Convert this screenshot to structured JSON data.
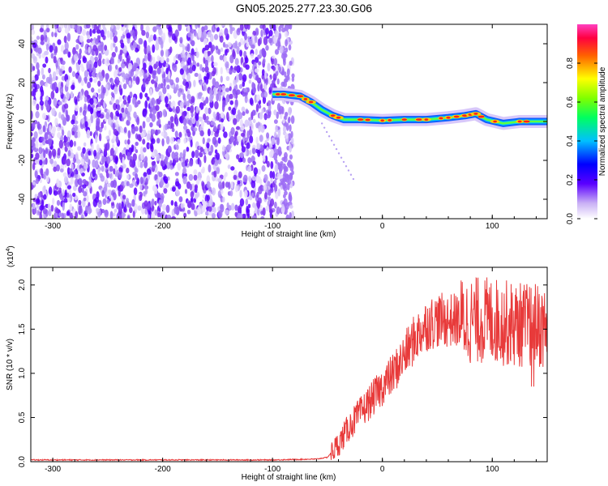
{
  "title": "GN05.2025.277.23.30.G06",
  "chart_data": [
    {
      "type": "heatmap",
      "xlabel": "Height of straight line (km)",
      "ylabel": "Frequency (Hz)",
      "xlim": [
        -320,
        150
      ],
      "ylim": [
        -50,
        50
      ],
      "xticks": [
        -300,
        -200,
        -100,
        0,
        100
      ],
      "yticks": [
        -40,
        -20,
        0,
        20,
        40
      ],
      "colorbar": {
        "label": "Normalized spectral amplitude",
        "range": [
          0.0,
          1.0
        ],
        "ticks": [
          "0.0",
          "0.2",
          "0.4",
          "0.6",
          "0.8"
        ]
      },
      "noise_region_x": [
        -320,
        -90
      ],
      "signal_track": {
        "x": [
          -100,
          -90,
          -75,
          -65,
          -55,
          -45,
          -35,
          -20,
          0,
          20,
          40,
          60,
          75,
          85,
          95,
          110,
          125,
          150
        ],
        "frequency": [
          14,
          14,
          13,
          10,
          6,
          3,
          1,
          1,
          0.5,
          1,
          1,
          2,
          3,
          4,
          1,
          -1,
          0,
          0
        ]
      }
    },
    {
      "type": "line",
      "xlabel": "Height of straight line (km)",
      "ylabel": "SNR (10 * v/v)",
      "y_multiplier": "(x10^4)",
      "xlim": [
        -320,
        150
      ],
      "ylim": [
        0,
        2.2
      ],
      "xticks": [
        -300,
        -200,
        -100,
        0,
        100
      ],
      "yticks": [
        0.0,
        0.5,
        1.0,
        1.5,
        2.0
      ],
      "color": "#e83a3a",
      "series": [
        {
          "x": [
            -320,
            -100,
            -60,
            -50,
            -40,
            -30,
            -20,
            -10,
            0,
            10,
            20,
            30,
            40,
            50,
            60,
            80,
            100,
            120,
            130,
            140,
            150
          ],
          "values": [
            0.02,
            0.02,
            0.03,
            0.05,
            0.2,
            0.4,
            0.55,
            0.7,
            0.85,
            1.0,
            1.2,
            1.4,
            1.55,
            1.6,
            1.6,
            1.6,
            1.6,
            1.55,
            1.55,
            1.55,
            1.5
          ]
        }
      ]
    }
  ]
}
